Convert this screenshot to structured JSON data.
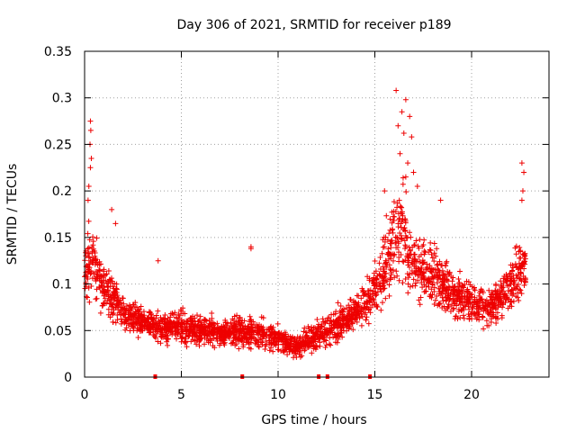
{
  "chart_data": {
    "type": "scatter",
    "title": "Day 306 of 2021, SRMTID for receiver p189",
    "xlabel": "GPS time / hours",
    "ylabel": "SRMTID / TECUs",
    "xlim": [
      0,
      24
    ],
    "ylim": [
      0,
      0.35
    ],
    "x_ticks": [
      0,
      5,
      10,
      15,
      20
    ],
    "x_tick_labels": [
      "0",
      "5",
      "10",
      "15",
      "20"
    ],
    "y_ticks": [
      0,
      0.05,
      0.1,
      0.15,
      0.2,
      0.25,
      0.3,
      0.35
    ],
    "y_tick_labels": [
      "0",
      "0.05",
      "0.1",
      "0.15",
      "0.2",
      "0.25",
      "0.3",
      "0.35"
    ],
    "grid": true,
    "marker": "plus",
    "color": "#ff0000",
    "marker_color": "#ee0000",
    "envelope": {
      "x": [
        0.0,
        0.3,
        0.8,
        1.5,
        2.0,
        3.0,
        4.0,
        5.0,
        6.0,
        7.0,
        8.0,
        9.0,
        10.0,
        10.5,
        11.0,
        12.0,
        13.0,
        14.0,
        14.8,
        15.3,
        15.8,
        16.3,
        17.0,
        18.0,
        19.0,
        20.0,
        21.0,
        21.5,
        22.0,
        22.8
      ],
      "y": [
        0.11,
        0.13,
        0.1,
        0.085,
        0.07,
        0.06,
        0.052,
        0.055,
        0.05,
        0.048,
        0.05,
        0.048,
        0.04,
        0.035,
        0.032,
        0.045,
        0.055,
        0.07,
        0.085,
        0.11,
        0.13,
        0.16,
        0.12,
        0.11,
        0.09,
        0.08,
        0.075,
        0.085,
        0.1,
        0.12
      ],
      "spread": [
        0.045,
        0.06,
        0.04,
        0.035,
        0.025,
        0.02,
        0.02,
        0.025,
        0.02,
        0.02,
        0.022,
        0.025,
        0.018,
        0.016,
        0.015,
        0.02,
        0.025,
        0.025,
        0.03,
        0.045,
        0.06,
        0.07,
        0.05,
        0.045,
        0.035,
        0.03,
        0.03,
        0.035,
        0.04,
        0.045
      ]
    },
    "outliers": [
      {
        "x": 0.3,
        "y": 0.275
      },
      {
        "x": 0.32,
        "y": 0.265
      },
      {
        "x": 0.28,
        "y": 0.25
      },
      {
        "x": 0.35,
        "y": 0.235
      },
      {
        "x": 0.3,
        "y": 0.225
      },
      {
        "x": 0.22,
        "y": 0.205
      },
      {
        "x": 0.18,
        "y": 0.19
      },
      {
        "x": 16.1,
        "y": 0.308
      },
      {
        "x": 16.6,
        "y": 0.298
      },
      {
        "x": 16.4,
        "y": 0.285
      },
      {
        "x": 16.2,
        "y": 0.27
      },
      {
        "x": 16.8,
        "y": 0.28
      },
      {
        "x": 16.5,
        "y": 0.262
      },
      {
        "x": 16.9,
        "y": 0.258
      },
      {
        "x": 16.3,
        "y": 0.24
      },
      {
        "x": 16.7,
        "y": 0.23
      },
      {
        "x": 17.0,
        "y": 0.22
      },
      {
        "x": 16.6,
        "y": 0.215
      },
      {
        "x": 17.2,
        "y": 0.205
      },
      {
        "x": 15.5,
        "y": 0.2
      },
      {
        "x": 22.6,
        "y": 0.23
      },
      {
        "x": 22.7,
        "y": 0.22
      },
      {
        "x": 22.65,
        "y": 0.2
      },
      {
        "x": 22.6,
        "y": 0.19
      },
      {
        "x": 8.6,
        "y": 0.138
      },
      {
        "x": 8.6,
        "y": 0.14
      },
      {
        "x": 3.8,
        "y": 0.125
      },
      {
        "x": 1.4,
        "y": 0.18
      },
      {
        "x": 1.6,
        "y": 0.165
      },
      {
        "x": 18.4,
        "y": 0.19
      }
    ],
    "gap_markers_x": [
      3.65,
      8.15,
      12.1,
      12.55,
      14.75
    ]
  }
}
